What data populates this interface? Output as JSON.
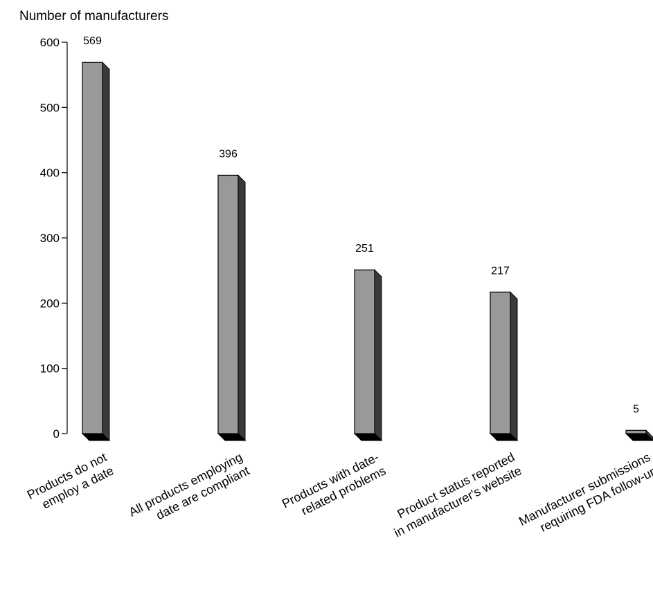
{
  "chart_data": {
    "type": "bar",
    "title": "",
    "xlabel": "",
    "ylabel": "Number of manufacturers",
    "ylim": [
      0,
      600
    ],
    "yticks": [
      0,
      100,
      200,
      300,
      400,
      500,
      600
    ],
    "grid": false,
    "legend": "none",
    "style": "3d",
    "categories": [
      [
        "Products do not",
        "employ a date"
      ],
      [
        "All products employing",
        "date are compliant"
      ],
      [
        "Products with date-",
        "related problems"
      ],
      [
        "Product status reported",
        "in manufacturer's website"
      ],
      [
        "Manufacturer submissions",
        "requiring FDA follow-up"
      ]
    ],
    "values": [
      569,
      396,
      251,
      217,
      5
    ],
    "colors": {
      "bar_front": "#999999",
      "bar_side": "#3a3a3a",
      "bar_shadow": "#000000",
      "outline": "#000000"
    }
  }
}
